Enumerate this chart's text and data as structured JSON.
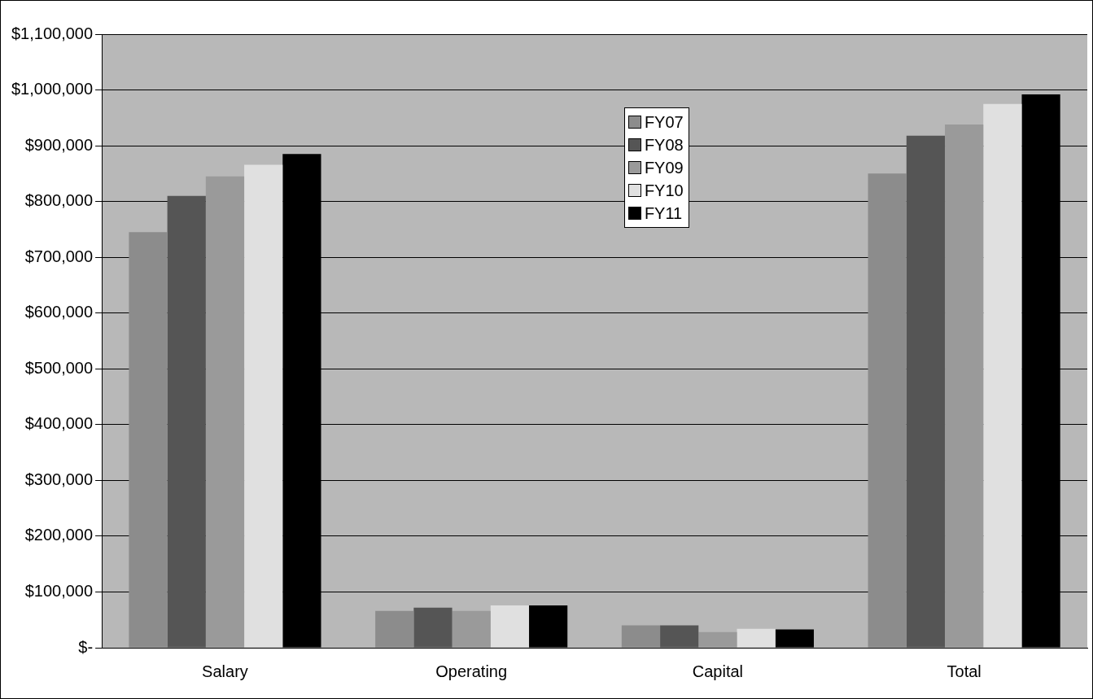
{
  "chart_data": {
    "type": "bar",
    "categories": [
      "Salary",
      "Operating",
      "Capital",
      "Total"
    ],
    "series": [
      {
        "name": "FY07",
        "color": "#8c8c8c",
        "values": [
          745000,
          66000,
          40000,
          850000
        ]
      },
      {
        "name": "FY08",
        "color": "#555555",
        "values": [
          810000,
          72000,
          40000,
          918000
        ]
      },
      {
        "name": "FY09",
        "color": "#9a9a9a",
        "values": [
          845000,
          66000,
          28000,
          938000
        ]
      },
      {
        "name": "FY10",
        "color": "#e0e0e0",
        "values": [
          866000,
          76000,
          34000,
          975000
        ]
      },
      {
        "name": "FY11",
        "color": "#000000",
        "values": [
          885000,
          76000,
          33000,
          992000
        ]
      }
    ],
    "ylim": [
      0,
      1100000
    ],
    "yticks": [
      {
        "value": 0,
        "label": "$-"
      },
      {
        "value": 100000,
        "label": "$100,000"
      },
      {
        "value": 200000,
        "label": "$200,000"
      },
      {
        "value": 300000,
        "label": "$300,000"
      },
      {
        "value": 400000,
        "label": "$400,000"
      },
      {
        "value": 500000,
        "label": "$500,000"
      },
      {
        "value": 600000,
        "label": "$600,000"
      },
      {
        "value": 700000,
        "label": "$700,000"
      },
      {
        "value": 800000,
        "label": "$800,000"
      },
      {
        "value": 900000,
        "label": "$900,000"
      },
      {
        "value": 1000000,
        "label": "$1,000,000"
      },
      {
        "value": 1100000,
        "label": "$1,100,000"
      }
    ],
    "grid": "y",
    "legend": "top"
  }
}
